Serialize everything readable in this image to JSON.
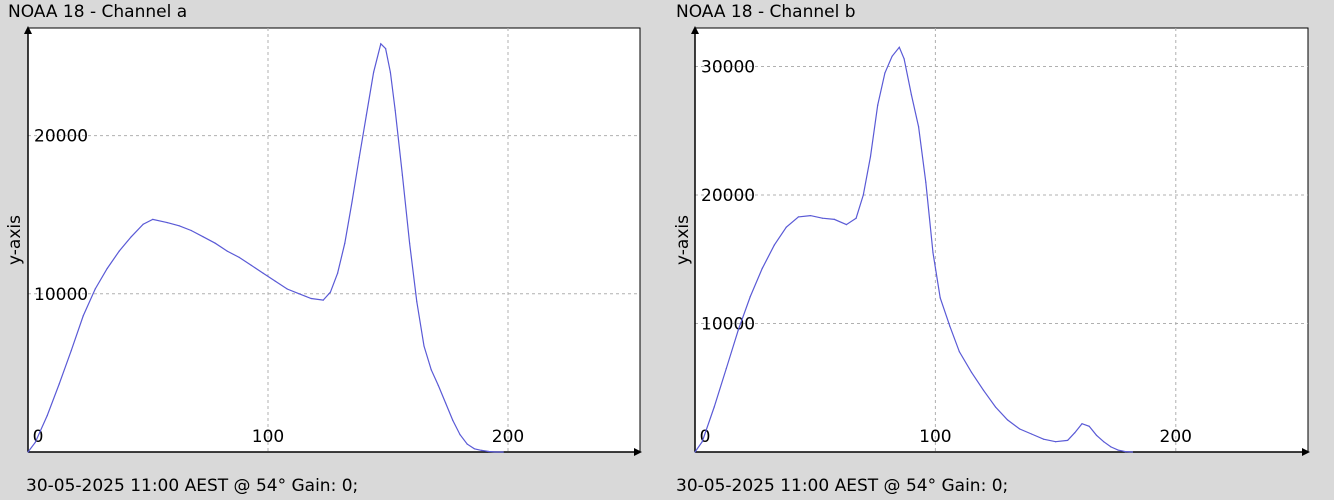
{
  "chart_data": [
    {
      "type": "line",
      "title": "NOAA 18 - Channel a",
      "ylabel": "y-axis",
      "xlabel": "",
      "footer": "30-05-2025 11:00 AEST @ 54° Gain: 0;",
      "xlim": [
        0,
        255
      ],
      "ylim": [
        0,
        26800
      ],
      "x_ticks": [
        0,
        100,
        200
      ],
      "y_ticks": [
        10000,
        20000
      ],
      "grid": true,
      "line_color": "#5a5ad6",
      "series": [
        {
          "x": [
            0,
            3,
            8,
            13,
            18,
            23,
            28,
            33,
            38,
            43,
            48,
            52,
            58,
            63,
            68,
            73,
            78,
            83,
            88,
            93,
            98,
            103,
            108,
            113,
            118,
            123,
            126,
            129,
            132,
            135,
            138,
            141,
            144,
            147,
            149,
            151,
            153,
            156,
            159,
            162,
            165,
            168,
            171,
            174,
            177,
            180,
            183,
            186,
            189,
            192,
            195,
            198
          ],
          "y": [
            0,
            600,
            2300,
            4300,
            6400,
            8600,
            10300,
            11600,
            12700,
            13600,
            14400,
            14700,
            14500,
            14300,
            14000,
            13600,
            13200,
            12700,
            12300,
            11800,
            11300,
            10800,
            10300,
            10000,
            9700,
            9600,
            10100,
            11300,
            13200,
            15800,
            18600,
            21300,
            24000,
            25800,
            25500,
            24000,
            21600,
            17500,
            13200,
            9500,
            6700,
            5200,
            4200,
            3100,
            2000,
            1100,
            500,
            200,
            100,
            30,
            0,
            0
          ]
        }
      ]
    },
    {
      "type": "line",
      "title": "NOAA 18 - Channel b",
      "ylabel": "y-axis",
      "xlabel": "",
      "footer": "30-05-2025 11:00 AEST @ 54° Gain: 0;",
      "xlim": [
        0,
        255
      ],
      "ylim": [
        0,
        33000
      ],
      "x_ticks": [
        0,
        100,
        200
      ],
      "y_ticks": [
        10000,
        20000,
        30000
      ],
      "grid": true,
      "line_color": "#5a5ad6",
      "series": [
        {
          "x": [
            0,
            3,
            8,
            13,
            18,
            23,
            28,
            33,
            38,
            43,
            48,
            53,
            58,
            63,
            67,
            70,
            73,
            76,
            79,
            82,
            85,
            87,
            90,
            93,
            96,
            99,
            102,
            106,
            110,
            115,
            120,
            125,
            130,
            135,
            140,
            145,
            150,
            155,
            158,
            161,
            164,
            167,
            170,
            173,
            176,
            179,
            182
          ],
          "y": [
            0,
            800,
            3500,
            6500,
            9500,
            12100,
            14300,
            16100,
            17500,
            18300,
            18400,
            18200,
            18100,
            17700,
            18200,
            20000,
            23000,
            27000,
            29500,
            30800,
            31500,
            30600,
            27800,
            25300,
            21000,
            15500,
            12000,
            9800,
            7800,
            6200,
            4800,
            3500,
            2500,
            1800,
            1400,
            1000,
            800,
            900,
            1500,
            2200,
            2000,
            1300,
            800,
            400,
            150,
            30,
            0
          ]
        }
      ]
    }
  ]
}
